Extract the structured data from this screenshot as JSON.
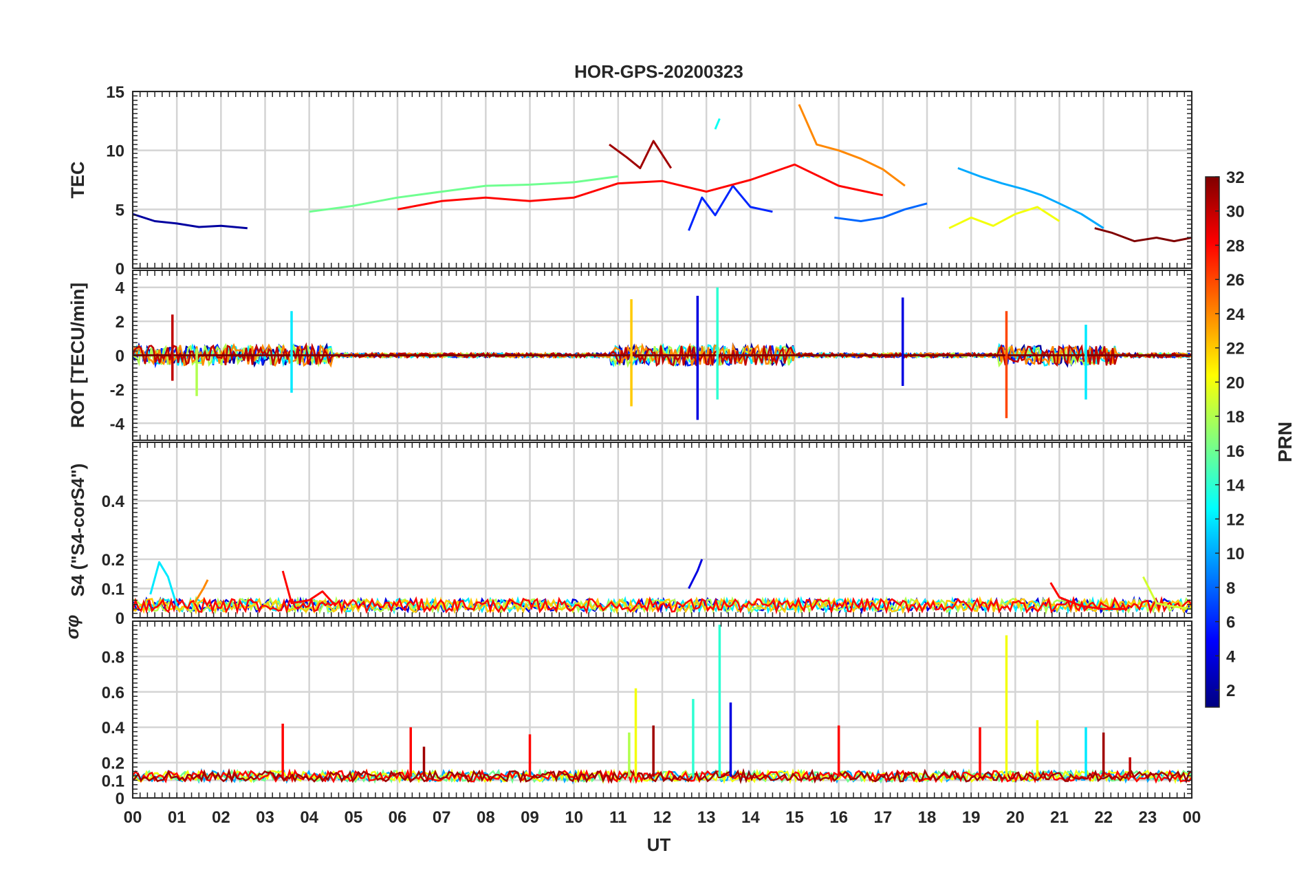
{
  "chart_data": {
    "type": "line",
    "title": "HOR-GPS-20200323",
    "xlabel": "UT",
    "x_tick_labels": [
      "00",
      "01",
      "02",
      "03",
      "04",
      "05",
      "06",
      "07",
      "08",
      "09",
      "10",
      "11",
      "12",
      "13",
      "14",
      "15",
      "16",
      "17",
      "18",
      "19",
      "20",
      "21",
      "22",
      "23",
      "00"
    ],
    "xlim_hours": [
      0,
      24
    ],
    "grid": true,
    "panels": [
      {
        "id": "tec",
        "ylabel": "TEC",
        "ylim": [
          0,
          15
        ],
        "yticks": [
          0,
          5,
          10,
          15
        ],
        "ytick_labels": [
          "0",
          "5",
          "10",
          "15"
        ],
        "series": [
          {
            "prn": 2,
            "x": [
              0.0,
              0.5,
              1.0,
              1.5,
              2.0,
              2.6
            ],
            "values": [
              4.6,
              4.0,
              3.8,
              3.5,
              3.6,
              3.4
            ]
          },
          {
            "prn": 6,
            "x": [
              12.6,
              12.9,
              13.2,
              13.6,
              14.0,
              14.5
            ],
            "values": [
              3.2,
              6.0,
              4.5,
              7.0,
              5.2,
              4.8
            ]
          },
          {
            "prn": 8,
            "x": [
              15.9,
              16.5,
              17.0,
              17.5,
              18.0
            ],
            "values": [
              4.3,
              4.0,
              4.3,
              5.0,
              5.5
            ]
          },
          {
            "prn": 10,
            "x": [
              18.7,
              19.2,
              19.7,
              20.2,
              20.6,
              21.0,
              21.5,
              22.0
            ],
            "values": [
              8.5,
              7.8,
              7.2,
              6.7,
              6.2,
              5.5,
              4.6,
              3.4
            ]
          },
          {
            "prn": 13,
            "x": [
              13.2,
              13.3
            ],
            "values": [
              11.8,
              12.7
            ]
          },
          {
            "prn": 16,
            "x": [
              4.0,
              5.0,
              6.0,
              7.0,
              8.0,
              9.0,
              10.0,
              11.0
            ],
            "values": [
              4.8,
              5.3,
              6.0,
              6.5,
              7.0,
              7.1,
              7.3,
              7.8
            ]
          },
          {
            "prn": 20,
            "x": [
              18.5,
              19.0,
              19.5,
              20.0,
              20.5,
              21.0
            ],
            "values": [
              3.4,
              4.3,
              3.6,
              4.6,
              5.2,
              4.0
            ]
          },
          {
            "prn": 24,
            "x": [
              15.1,
              15.5,
              16.0,
              16.5,
              17.0,
              17.5
            ],
            "values": [
              13.9,
              10.5,
              10.0,
              9.3,
              8.4,
              7.0
            ]
          },
          {
            "prn": 28,
            "x": [
              6.0,
              7.0,
              8.0,
              9.0,
              10.0,
              11.0,
              12.0,
              13.0,
              14.0,
              15.0,
              16.0,
              17.0
            ],
            "values": [
              5.0,
              5.7,
              6.0,
              5.7,
              6.0,
              7.2,
              7.4,
              6.5,
              7.5,
              8.8,
              7.0,
              6.2
            ]
          },
          {
            "prn": 31,
            "x": [
              10.8,
              11.2,
              11.5,
              11.8,
              12.2
            ],
            "values": [
              10.5,
              9.4,
              8.5,
              10.8,
              8.5
            ]
          },
          {
            "prn": 32,
            "x": [
              21.8,
              22.2,
              22.7,
              23.2,
              23.6,
              24.0
            ],
            "values": [
              3.4,
              3.0,
              2.3,
              2.6,
              2.3,
              2.6
            ]
          }
        ]
      },
      {
        "id": "rot",
        "ylabel": "ROT [TECU/min]",
        "ylim": [
          -5,
          5
        ],
        "yticks": [
          -4,
          -2,
          0,
          2,
          4
        ],
        "ytick_labels": [
          "-4",
          "-2",
          "0",
          "2",
          "4"
        ],
        "series": [
          {
            "prn": 32,
            "x": [
              0.0,
              3.0,
              6.0,
              9.0,
              12.0,
              15.0,
              18.0,
              21.0,
              24.0
            ],
            "values": [
              0,
              0,
              0,
              0,
              0,
              0,
              0,
              0,
              0
            ]
          }
        ],
        "spikes": [
          {
            "prn": 30,
            "x": 0.9,
            "values": [
              2.4,
              -1.5
            ]
          },
          {
            "prn": 18,
            "x": 1.45,
            "values": [
              0.4,
              -2.4
            ]
          },
          {
            "prn": 12,
            "x": 3.6,
            "values": [
              2.6,
              -2.2
            ]
          },
          {
            "prn": 22,
            "x": 11.3,
            "values": [
              3.3,
              -3.0
            ]
          },
          {
            "prn": 4,
            "x": 12.8,
            "values": [
              3.5,
              -3.8
            ]
          },
          {
            "prn": 14,
            "x": 13.25,
            "values": [
              4.0,
              -2.6
            ]
          },
          {
            "prn": 4,
            "x": 17.45,
            "values": [
              3.4,
              -1.8
            ]
          },
          {
            "prn": 26,
            "x": 19.8,
            "values": [
              2.6,
              -3.7
            ]
          },
          {
            "prn": 12,
            "x": 21.6,
            "values": [
              1.8,
              -2.6
            ]
          }
        ]
      },
      {
        "id": "s4",
        "ylabel": "S4 (\"S4-corS4\")",
        "ylim": [
          0,
          0.6
        ],
        "yticks": [
          0,
          0.1,
          0.2,
          0.4
        ],
        "ytick_labels": [
          "0",
          "0.1",
          "0.2",
          "0.4"
        ],
        "series": [
          {
            "prn": 12,
            "x": [
              0.4,
              0.6,
              0.8,
              1.0
            ],
            "values": [
              0.08,
              0.19,
              0.14,
              0.04
            ]
          },
          {
            "prn": 24,
            "x": [
              1.4,
              1.6,
              1.7
            ],
            "values": [
              0.05,
              0.1,
              0.13
            ]
          },
          {
            "prn": 28,
            "x": [
              3.4,
              3.6,
              4.0,
              4.3,
              4.6
            ],
            "values": [
              0.16,
              0.05,
              0.06,
              0.09,
              0.04
            ]
          },
          {
            "prn": 4,
            "x": [
              12.6,
              12.8,
              12.9
            ],
            "values": [
              0.1,
              0.16,
              0.2
            ]
          },
          {
            "prn": 28,
            "x": [
              20.8,
              21.0,
              21.5,
              22.0,
              22.5
            ],
            "values": [
              0.12,
              0.07,
              0.04,
              0.03,
              0.03
            ]
          },
          {
            "prn": 19,
            "x": [
              22.9,
              23.2,
              23.5,
              24.0
            ],
            "values": [
              0.14,
              0.05,
              0.04,
              0.03
            ]
          }
        ]
      },
      {
        "id": "sigma_phi",
        "ylabel": "σφ",
        "ylim": [
          0,
          1
        ],
        "yticks": [
          0,
          0.1,
          0.2,
          0.4,
          0.6,
          0.8
        ],
        "ytick_labels": [
          "0",
          "0.1",
          "0.2",
          "0.4",
          "0.6",
          "0.8"
        ],
        "baseline": 0.12,
        "spikes": [
          {
            "prn": 28,
            "x": 3.4,
            "value": 0.42
          },
          {
            "prn": 28,
            "x": 6.3,
            "value": 0.4
          },
          {
            "prn": 31,
            "x": 6.6,
            "value": 0.29
          },
          {
            "prn": 28,
            "x": 9.0,
            "value": 0.36
          },
          {
            "prn": 20,
            "x": 11.4,
            "value": 0.62
          },
          {
            "prn": 18,
            "x": 11.25,
            "value": 0.37
          },
          {
            "prn": 31,
            "x": 11.8,
            "value": 0.41
          },
          {
            "prn": 14,
            "x": 12.7,
            "value": 0.56
          },
          {
            "prn": 14,
            "x": 13.3,
            "value": 0.98
          },
          {
            "prn": 4,
            "x": 13.55,
            "value": 0.54
          },
          {
            "prn": 28,
            "x": 16.0,
            "value": 0.41
          },
          {
            "prn": 28,
            "x": 19.2,
            "value": 0.4
          },
          {
            "prn": 20,
            "x": 19.8,
            "value": 0.92
          },
          {
            "prn": 20,
            "x": 20.5,
            "value": 0.44
          },
          {
            "prn": 12,
            "x": 21.6,
            "value": 0.4
          },
          {
            "prn": 31,
            "x": 22.0,
            "value": 0.37
          },
          {
            "prn": 30,
            "x": 22.6,
            "value": 0.23
          }
        ]
      }
    ],
    "colorbar": {
      "label": "PRN",
      "range": [
        1,
        32
      ],
      "tick_labels": [
        "2",
        "4",
        "6",
        "8",
        "10",
        "12",
        "14",
        "16",
        "18",
        "20",
        "22",
        "24",
        "26",
        "28",
        "30",
        "32"
      ],
      "colormap": "jet"
    }
  }
}
